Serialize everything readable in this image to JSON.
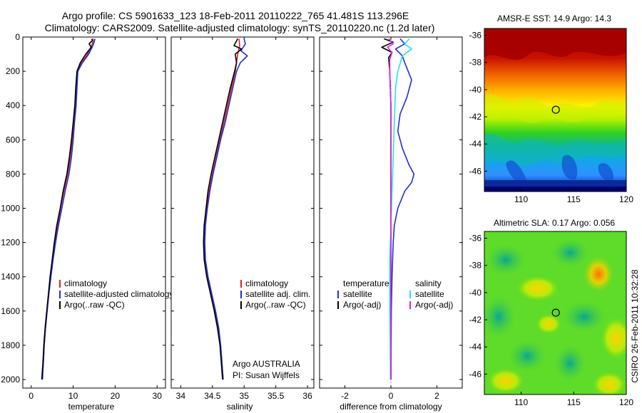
{
  "title_line1": "Argo profile: CS 5901633_123 18-Feb-2011 20110222_765 41.481S 113.296E",
  "title_line2": "Climatology: CARS2009. Satellite-adjusted climatology: synTS_20110220.nc (1.2d later)",
  "footer_stamp": "CSIRO 26-Feb-2011 10:32:28",
  "colors": {
    "climatology": "#e02020",
    "satellite": "#1f2fd6",
    "argo": "#000000",
    "salinity_satellite": "#22e3ea",
    "salinity_argo": "#e020e0"
  },
  "chart_data": [
    {
      "type": "line",
      "panel": "temperature",
      "xlabel": "temperature",
      "xlim": [
        -2,
        32
      ],
      "ylim": [
        2050,
        0
      ],
      "y_reversed": true,
      "xticks": [
        "0",
        "10",
        "20",
        "30"
      ],
      "yticks": [
        "0",
        "200",
        "400",
        "600",
        "800",
        "1000",
        "1200",
        "1400",
        "1600",
        "1800",
        "2000"
      ],
      "legend": [
        "climatology",
        "satellite-adjusted climatology",
        "Argo(..raw -QC)"
      ],
      "series": [
        {
          "name": "climatology",
          "color_key": "climatology",
          "points": [
            [
              14.8,
              10
            ],
            [
              14.7,
              30
            ],
            [
              14.2,
              60
            ],
            [
              13.4,
              100
            ],
            [
              12.0,
              150
            ],
            [
              11.0,
              200
            ],
            [
              10.8,
              300
            ],
            [
              10.5,
              400
            ],
            [
              10.1,
              500
            ],
            [
              9.8,
              600
            ],
            [
              9.3,
              700
            ],
            [
              8.7,
              800
            ],
            [
              7.8,
              900
            ],
            [
              7.0,
              1000
            ],
            [
              6.3,
              1100
            ],
            [
              5.7,
              1200
            ],
            [
              5.1,
              1300
            ],
            [
              4.6,
              1400
            ],
            [
              4.2,
              1500
            ],
            [
              3.8,
              1600
            ],
            [
              3.4,
              1700
            ],
            [
              3.1,
              1800
            ],
            [
              2.9,
              1900
            ],
            [
              2.6,
              2000
            ]
          ]
        },
        {
          "name": "satellite-adjusted climatology",
          "color_key": "satellite",
          "points": [
            [
              15.2,
              10
            ],
            [
              15.0,
              30
            ],
            [
              14.5,
              60
            ],
            [
              13.7,
              100
            ],
            [
              12.2,
              150
            ],
            [
              11.1,
              200
            ],
            [
              10.9,
              300
            ],
            [
              10.7,
              400
            ],
            [
              10.3,
              500
            ],
            [
              10.0,
              600
            ],
            [
              9.6,
              700
            ],
            [
              9.0,
              800
            ],
            [
              8.1,
              900
            ],
            [
              7.3,
              1000
            ],
            [
              6.5,
              1100
            ],
            [
              5.8,
              1200
            ],
            [
              5.2,
              1300
            ],
            [
              4.7,
              1400
            ],
            [
              4.2,
              1500
            ],
            [
              3.8,
              1600
            ],
            [
              3.4,
              1700
            ],
            [
              3.1,
              1800
            ],
            [
              2.9,
              1900
            ],
            [
              2.7,
              2000
            ]
          ]
        },
        {
          "name": "Argo(..raw -QC)",
          "color_key": "argo",
          "points": [
            [
              14.4,
              10
            ],
            [
              14.6,
              20
            ],
            [
              13.8,
              40
            ],
            [
              14.3,
              60
            ],
            [
              13.0,
              100
            ],
            [
              11.7,
              150
            ],
            [
              10.9,
              200
            ],
            [
              10.6,
              300
            ],
            [
              10.4,
              400
            ],
            [
              10.0,
              500
            ],
            [
              9.6,
              600
            ],
            [
              9.1,
              700
            ],
            [
              8.5,
              800
            ],
            [
              7.6,
              900
            ],
            [
              6.9,
              1000
            ],
            [
              6.1,
              1100
            ],
            [
              5.5,
              1200
            ],
            [
              5.0,
              1300
            ],
            [
              4.5,
              1400
            ],
            [
              4.1,
              1500
            ],
            [
              3.7,
              1600
            ],
            [
              3.3,
              1700
            ],
            [
              3.0,
              1800
            ],
            [
              2.8,
              1900
            ],
            [
              2.5,
              2000
            ]
          ]
        }
      ]
    },
    {
      "type": "line",
      "panel": "salinity",
      "xlabel": "salinity",
      "xlim": [
        33.85,
        36.1
      ],
      "ylim": [
        2050,
        0
      ],
      "y_reversed": true,
      "xticks": [
        "34",
        "34.5",
        "35",
        "35.5",
        "36"
      ],
      "legend": [
        "climatology",
        "satellite adj. clim.",
        "Argo(..raw -QC)"
      ],
      "annotation": [
        "Argo AUSTRALIA",
        "PI: Susan Wijffels"
      ],
      "series": [
        {
          "name": "climatology",
          "color_key": "climatology",
          "points": [
            [
              34.92,
              10
            ],
            [
              34.93,
              50
            ],
            [
              34.9,
              100
            ],
            [
              34.86,
              200
            ],
            [
              34.8,
              300
            ],
            [
              34.74,
              400
            ],
            [
              34.68,
              500
            ],
            [
              34.62,
              600
            ],
            [
              34.56,
              700
            ],
            [
              34.5,
              800
            ],
            [
              34.45,
              900
            ],
            [
              34.41,
              1000
            ],
            [
              34.38,
              1100
            ],
            [
              34.37,
              1200
            ],
            [
              34.38,
              1300
            ],
            [
              34.42,
              1400
            ],
            [
              34.48,
              1500
            ],
            [
              34.54,
              1600
            ],
            [
              34.59,
              1700
            ],
            [
              34.63,
              1800
            ],
            [
              34.65,
              1900
            ],
            [
              34.67,
              2000
            ]
          ]
        },
        {
          "name": "satellite adj. clim.",
          "color_key": "satellite",
          "points": [
            [
              35.0,
              10
            ],
            [
              35.02,
              40
            ],
            [
              34.95,
              80
            ],
            [
              35.05,
              110
            ],
            [
              34.94,
              150
            ],
            [
              34.88,
              200
            ],
            [
              34.82,
              300
            ],
            [
              34.76,
              400
            ],
            [
              34.7,
              500
            ],
            [
              34.63,
              600
            ],
            [
              34.57,
              700
            ],
            [
              34.51,
              800
            ],
            [
              34.46,
              900
            ],
            [
              34.42,
              1000
            ],
            [
              34.39,
              1100
            ],
            [
              34.38,
              1200
            ],
            [
              34.39,
              1300
            ],
            [
              34.43,
              1400
            ],
            [
              34.49,
              1500
            ],
            [
              34.55,
              1600
            ],
            [
              34.6,
              1700
            ],
            [
              34.63,
              1800
            ],
            [
              34.65,
              1900
            ],
            [
              34.67,
              2000
            ]
          ]
        },
        {
          "name": "Argo(..raw -QC)",
          "color_key": "argo",
          "points": [
            [
              34.9,
              10
            ],
            [
              34.84,
              50
            ],
            [
              34.96,
              70
            ],
            [
              34.86,
              100
            ],
            [
              34.88,
              150
            ],
            [
              34.85,
              200
            ],
            [
              34.78,
              300
            ],
            [
              34.72,
              400
            ],
            [
              34.66,
              500
            ],
            [
              34.6,
              600
            ],
            [
              34.54,
              700
            ],
            [
              34.48,
              800
            ],
            [
              34.43,
              900
            ],
            [
              34.4,
              1000
            ],
            [
              34.37,
              1100
            ],
            [
              34.36,
              1200
            ],
            [
              34.37,
              1300
            ],
            [
              34.41,
              1400
            ],
            [
              34.47,
              1500
            ],
            [
              34.53,
              1600
            ],
            [
              34.58,
              1700
            ],
            [
              34.62,
              1800
            ],
            [
              34.64,
              1900
            ],
            [
              34.66,
              2000
            ]
          ]
        }
      ]
    },
    {
      "type": "line",
      "panel": "difference",
      "xlabel": "difference from climatology",
      "xlim": [
        -3.1,
        3.1
      ],
      "ylim": [
        2050,
        0
      ],
      "y_reversed": true,
      "xticks": [
        "-2",
        "0",
        "2"
      ],
      "legend_left_title": "temperature",
      "legend_right_title": "salinity",
      "legend_left": [
        "satellite",
        "Argo(-adj)"
      ],
      "legend_right": [
        "satellite",
        "Argo(-adj)"
      ],
      "series": [
        {
          "name": "temperature satellite",
          "color_key": "satellite",
          "points": [
            [
              0.4,
              10
            ],
            [
              0.6,
              40
            ],
            [
              0.2,
              70
            ],
            [
              0.5,
              110
            ],
            [
              0.6,
              150
            ],
            [
              0.9,
              250
            ],
            [
              0.7,
              350
            ],
            [
              0.4,
              450
            ],
            [
              0.3,
              550
            ],
            [
              0.5,
              650
            ],
            [
              0.8,
              750
            ],
            [
              1.0,
              800
            ],
            [
              0.9,
              850
            ],
            [
              0.6,
              900
            ],
            [
              0.3,
              1000
            ],
            [
              0.15,
              1100
            ],
            [
              0.1,
              1200
            ],
            [
              0.05,
              1400
            ],
            [
              0.02,
              1600
            ],
            [
              0.0,
              2000
            ]
          ]
        },
        {
          "name": "temperature Argo(-adj)",
          "color_key": "argo",
          "points": [
            [
              -0.3,
              10
            ],
            [
              0.1,
              30
            ],
            [
              -0.4,
              60
            ],
            [
              0.05,
              90
            ],
            [
              -0.1,
              120
            ],
            [
              -0.05,
              200
            ],
            [
              0.0,
              400
            ],
            [
              0.0,
              600
            ],
            [
              0.0,
              800
            ],
            [
              0.0,
              1000
            ],
            [
              0.0,
              1200
            ],
            [
              0.0,
              1400
            ],
            [
              0.0,
              1600
            ],
            [
              0.0,
              1800
            ],
            [
              0.0,
              2000
            ]
          ]
        },
        {
          "name": "salinity satellite",
          "color_key": "salinity_satellite",
          "points": [
            [
              0.8,
              10
            ],
            [
              0.6,
              40
            ],
            [
              0.9,
              70
            ],
            [
              0.5,
              110
            ],
            [
              0.3,
              200
            ],
            [
              0.2,
              300
            ],
            [
              0.15,
              500
            ],
            [
              0.1,
              700
            ],
            [
              0.05,
              900
            ],
            [
              0.0,
              1100
            ],
            [
              -0.05,
              1300
            ],
            [
              -0.05,
              1600
            ],
            [
              -0.03,
              1800
            ],
            [
              -0.02,
              2000
            ]
          ]
        },
        {
          "name": "salinity Argo(-adj)",
          "color_key": "salinity_argo",
          "points": [
            [
              -0.1,
              10
            ],
            [
              0.1,
              40
            ],
            [
              -0.15,
              60
            ],
            [
              0.05,
              90
            ],
            [
              -0.05,
              130
            ],
            [
              -0.05,
              200
            ],
            [
              0.0,
              400
            ],
            [
              0.0,
              700
            ],
            [
              0.0,
              1000
            ],
            [
              0.0,
              1300
            ],
            [
              0.0,
              1600
            ],
            [
              0.0,
              2000
            ]
          ]
        }
      ]
    },
    {
      "type": "heatmap",
      "panel": "sst-map",
      "title": "AMSR-E SST: 14.9  Argo: 14.3",
      "xticks": [
        "110",
        "115",
        "120"
      ],
      "yticks": [
        "-36",
        "-38",
        "-40",
        "-42",
        "-44",
        "-46"
      ],
      "xlim": [
        106.5,
        120
      ],
      "ylim": [
        -47.5,
        -35.5
      ],
      "marker": {
        "lon": 113.296,
        "lat": -41.481
      }
    },
    {
      "type": "heatmap",
      "panel": "sla-map",
      "title": "Altimetric SLA: 0.17  Argo: 0.056",
      "xticks": [
        "110",
        "115",
        "120"
      ],
      "yticks": [
        "-36",
        "-38",
        "-40",
        "-42",
        "-44",
        "-46"
      ],
      "xlim": [
        106.5,
        120
      ],
      "ylim": [
        -47.5,
        -35.5
      ],
      "marker": {
        "lon": 113.296,
        "lat": -41.481
      }
    }
  ]
}
